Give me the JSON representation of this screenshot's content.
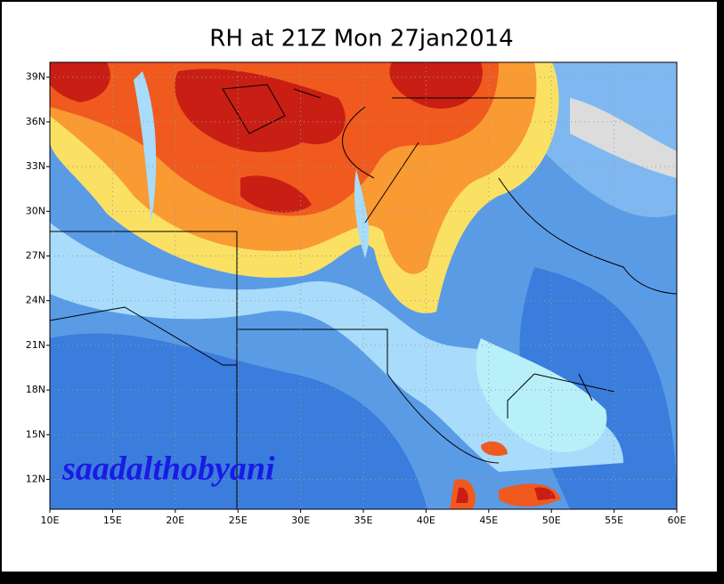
{
  "title": "RH at 21Z Mon 27jan2014",
  "map": {
    "lon_range": [
      10,
      60
    ],
    "lat_range": [
      10,
      40
    ],
    "lon_ticks": [
      {
        "value": 10,
        "label": "10E"
      },
      {
        "value": 15,
        "label": "15E"
      },
      {
        "value": 20,
        "label": "20E"
      },
      {
        "value": 25,
        "label": "25E"
      },
      {
        "value": 30,
        "label": "30E"
      },
      {
        "value": 35,
        "label": "35E"
      },
      {
        "value": 40,
        "label": "40E"
      },
      {
        "value": 45,
        "label": "45E"
      },
      {
        "value": 50,
        "label": "50E"
      },
      {
        "value": 55,
        "label": "55E"
      },
      {
        "value": 60,
        "label": "60E"
      }
    ],
    "lat_ticks": [
      {
        "value": 12,
        "label": "12N"
      },
      {
        "value": 15,
        "label": "15N"
      },
      {
        "value": 18,
        "label": "18N"
      },
      {
        "value": 21,
        "label": "21N"
      },
      {
        "value": 24,
        "label": "24N"
      },
      {
        "value": 27,
        "label": "27N"
      },
      {
        "value": 30,
        "label": "30N"
      },
      {
        "value": 33,
        "label": "33N"
      },
      {
        "value": 36,
        "label": "36N"
      },
      {
        "value": 39,
        "label": "39N"
      }
    ]
  },
  "watermark": "saadalthobyani"
}
